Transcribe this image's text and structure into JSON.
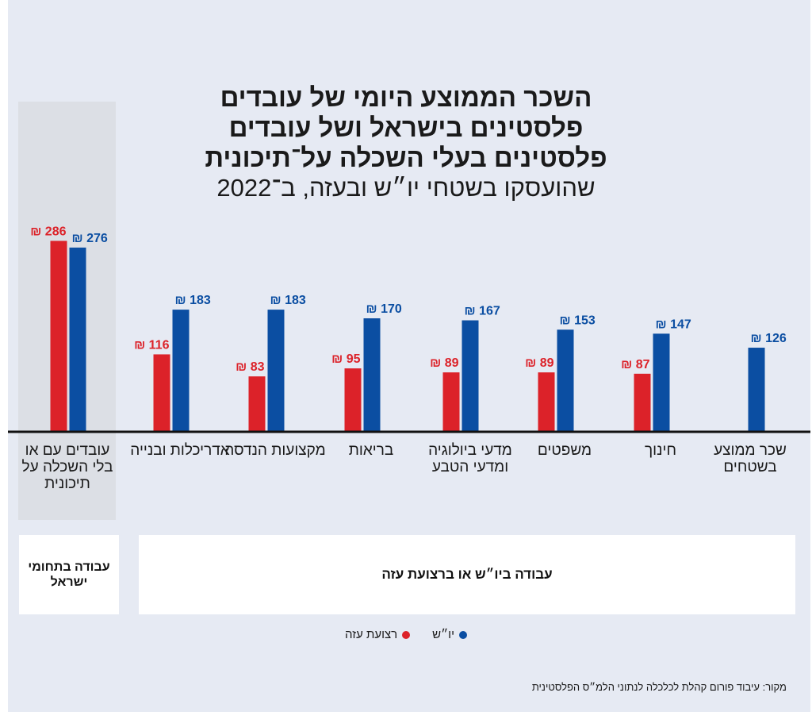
{
  "title": {
    "line1": "השכר הממוצע היומי של עובדים",
    "line2": "פלסטינים בישראל ושל עובדים",
    "line3": "פלסטינים בעלי השכלה על־תיכונית",
    "line4": "שהועסקו בשטחי יו״ש ובעזה, ב־2022"
  },
  "colors": {
    "gaza": "#dc2229",
    "west_bank": "#0b4ea2",
    "axis": "#111111",
    "israel_band": "#dcdfe5"
  },
  "currency_symbol": "₪",
  "groups": {
    "israel": "עבודה בתחומי ישראל",
    "territories": "עבודה ביו״ש או ברצועת עזה"
  },
  "legend": [
    {
      "name": "יו״ש",
      "color": "#0b4ea2"
    },
    {
      "name": "רצועת עזה",
      "color": "#dc2229"
    }
  ],
  "source": "מקור: עיבוד פורום קהלת לכלכלה לנתוני הלמ״ס הפלסטינית",
  "chart_data": {
    "type": "bar",
    "categories": [
      "עובדים עם או בלי השכלה על תיכונית",
      "אדריכלות ובנייה",
      "מקצועות הנדסה",
      "בריאות",
      "מדעי ביולוגיה ומדעי הטבע",
      "משפטים",
      "חינוך",
      "שכר ממוצע בשטחים"
    ],
    "series": [
      {
        "name": "רצועת עזה",
        "values": [
          286,
          116,
          83,
          95,
          89,
          89,
          87,
          null
        ]
      },
      {
        "name": "יו״ש",
        "values": [
          276,
          183,
          183,
          170,
          167,
          153,
          147,
          126
        ]
      }
    ],
    "unit": "₪",
    "ylim": [
      0,
      300
    ],
    "grid": false,
    "legend_position": "bottom"
  }
}
